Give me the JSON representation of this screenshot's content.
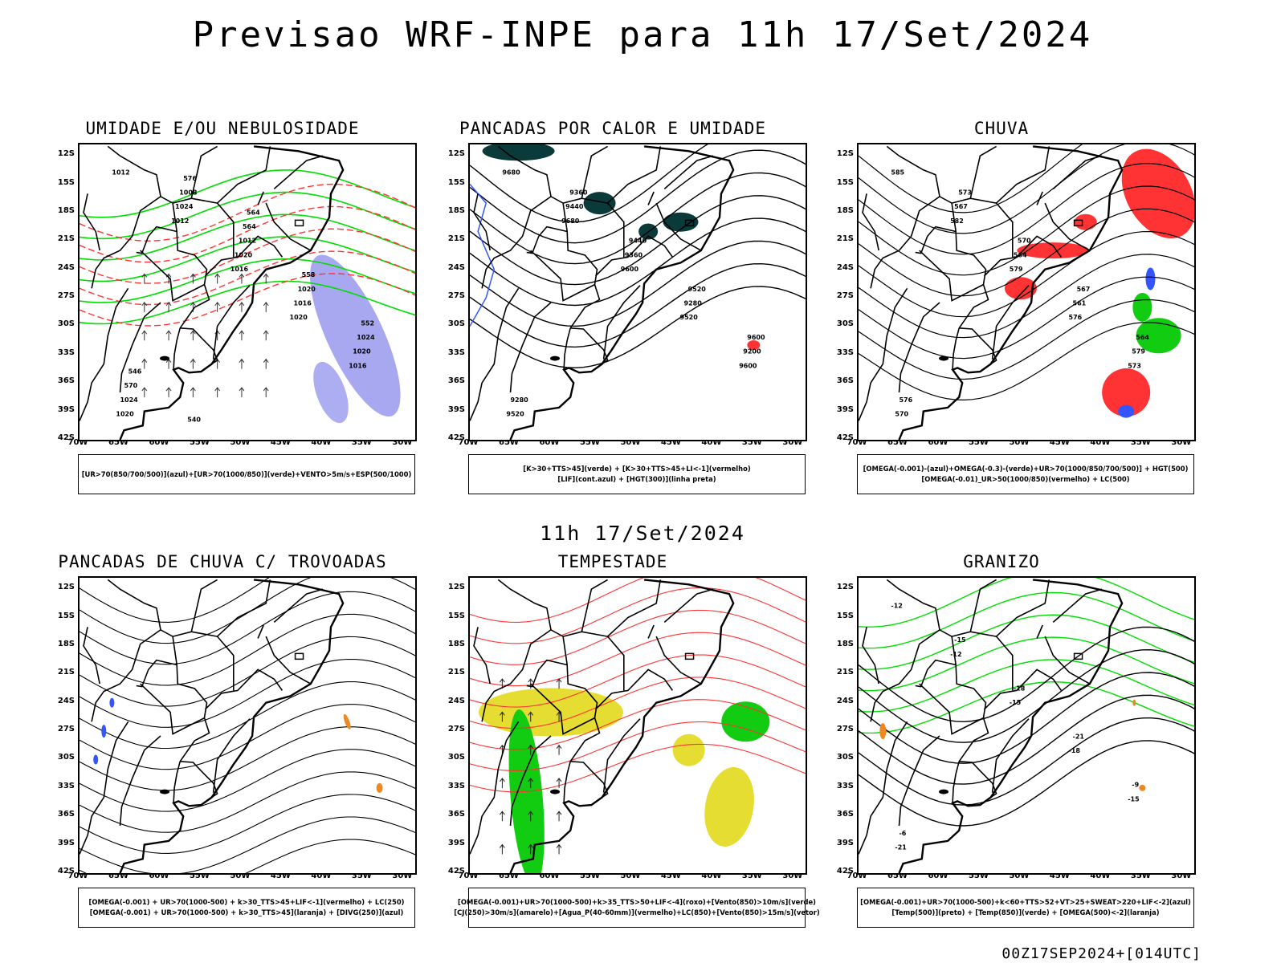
{
  "header": {
    "title": "Previsao WRF-INPE  para 11h 17/Set/2024",
    "middle_title": "11h 17/Set/2024",
    "footer_stamp": "00Z17SEP2024+[014UTC]"
  },
  "axes": {
    "lat_labels": [
      "12S",
      "15S",
      "18S",
      "21S",
      "24S",
      "27S",
      "30S",
      "33S",
      "36S",
      "39S",
      "42S"
    ],
    "lon_labels": [
      "70W",
      "65W",
      "60W",
      "55W",
      "50W",
      "45W",
      "40W",
      "35W",
      "30W"
    ]
  },
  "colors": {
    "frame": "#000000",
    "contour_red": "#ff3333",
    "contour_green": "#00dd00",
    "contour_blue": "#3355ff",
    "fill_green": "#11cc11",
    "fill_red": "#ff3333",
    "fill_yellow": "#e6dd33",
    "fill_orange": "#ee8822",
    "fill_darkteal": "#0b3a3a",
    "fill_lavender": "#9999ee"
  },
  "panels": [
    {
      "id": "umidade",
      "title": "UMIDADE E/OU NEBULOSIDADE",
      "legend": [
        "[UR>70(850/700/500)](azul)+[UR>70(1000/850)](verde)+VENTO>5m/s+ESP(500/1000)"
      ],
      "contour_labels": [
        "1012",
        "1012",
        "1016",
        "1020",
        "1016",
        "1020",
        "1024",
        "1020",
        "1016",
        "1020",
        "1024",
        "1008",
        "1012",
        "1020",
        "1024",
        "570",
        "576",
        "564",
        "558",
        "552",
        "546",
        "540",
        "564"
      ]
    },
    {
      "id": "pancadas-calor",
      "title": "PANCADAS POR CALOR E UMIDADE",
      "legend": [
        "[K>30+TTS>45](verde) + [K>30+TTS>45+LI<-1](vermelho)",
        "[LIF](cont.azul) + [HGT(300)](linha preta)"
      ],
      "contour_labels": [
        "9680",
        "9680",
        "9600",
        "9520",
        "9600",
        "9520",
        "9440",
        "9360",
        "9280",
        "9200",
        "9280",
        "9360",
        "9440",
        "9520",
        "9600"
      ]
    },
    {
      "id": "chuva",
      "title": "CHUVA",
      "legend": [
        "[OMEGA(-0.001)-(azul)+OMEGA(-0.3)-(verde)+UR>70(1000/850/700/500)] + HGT(500)",
        "[OMEGA(-0.01)_UR>50(1000/850)(vermelho) + LC(500)"
      ],
      "contour_labels": [
        "585",
        "582",
        "579",
        "576",
        "573",
        "570",
        "567",
        "564",
        "561",
        "579",
        "576",
        "573",
        "570",
        "567",
        "564"
      ]
    },
    {
      "id": "trovoadas",
      "title": "PANCADAS DE CHUVA C/ TROVOADAS",
      "legend": [
        "[OMEGA(-0.001) + UR>70(1000-500) + k>30_TTS>45+LIF<-1](vermelho) + LC(250)",
        "[OMEGA(-0.001) + UR>70(1000-500) + k>30_TTS>45](laranja) + [DIVG(250)](azul)"
      ],
      "contour_labels": []
    },
    {
      "id": "tempestade",
      "title": "TEMPESTADE",
      "legend": [
        "[OMEGA(-0.001)+UR>70(1000-500)+k>35_TTS>50+LIF<-4](roxo)+[Vento(850)>10m/s](verde)",
        "[CJ(250)>30m/s](amarelo)+[Agua_P(40-60mm)](vermelho)+LC(850)+[Vento(850)>15m/s](vetor)"
      ],
      "contour_labels": []
    },
    {
      "id": "granizo",
      "title": "GRANIZO",
      "legend": [
        "[OMEGA(-0.001)+UR>70(1000-500)+k<60+TTS>52+VT>25+SWEAT>220+LIF<-2](azul)",
        "[Temp(500)](preto) + [Temp(850)](verde) + [OMEGA(500)<-2](laranja)"
      ],
      "contour_labels": [
        "-12",
        "-12",
        "-15",
        "-18",
        "-15",
        "-21",
        "-15",
        "-18",
        "-21",
        "-9",
        "-6"
      ]
    }
  ]
}
